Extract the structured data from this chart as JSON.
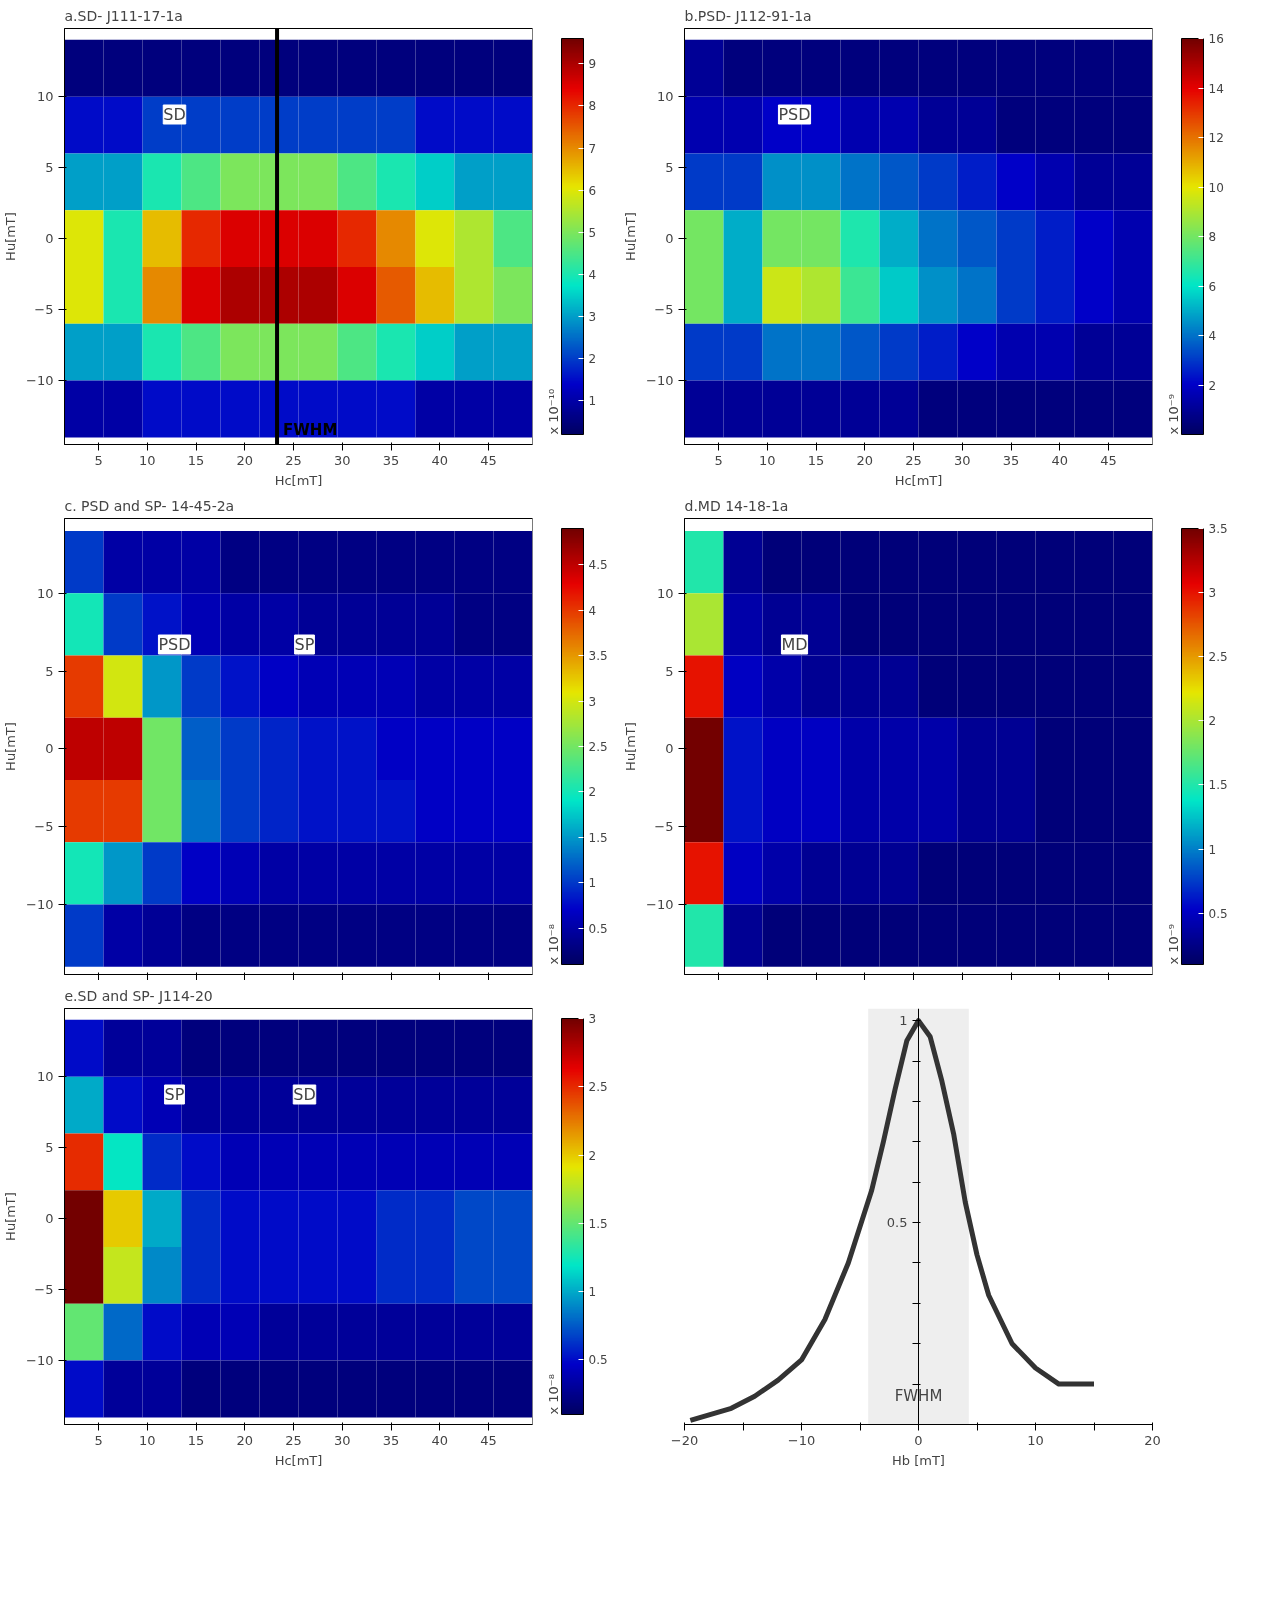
{
  "chart_data": [
    {
      "type": "heatmap",
      "title": "a.SD- J111-17-1a",
      "xlabel": "Hc[mT]",
      "ylabel": "Hu[mT]",
      "clabel": "x 10⁻¹⁰",
      "x": [
        3.5,
        7.5,
        11.5,
        15.5,
        19.5,
        23.5,
        27.5,
        31.5,
        35.5,
        39.5,
        43.5,
        47.5
      ],
      "y": [
        12,
        8,
        4,
        0,
        -4,
        -8,
        -12
      ],
      "cells": [
        [
          0.5,
          0.5,
          0.5,
          0.5,
          0.5,
          0.5,
          0.5,
          0.5,
          0.5,
          0.5,
          0.5,
          0.5
        ],
        [
          1.5,
          1.5,
          2,
          2,
          2,
          2,
          2,
          2,
          2,
          1.5,
          1.5,
          1.5
        ],
        [
          3,
          3,
          4,
          4.5,
          5,
          5,
          5,
          4.5,
          4,
          3.5,
          3,
          3
        ],
        [
          6,
          4,
          6.5,
          8,
          8.5,
          8.5,
          8.5,
          8,
          7,
          6,
          5.5,
          4.5
        ],
        [
          6,
          4,
          7,
          8.5,
          9,
          9,
          9,
          8.5,
          7.5,
          6.5,
          5.5,
          5
        ],
        [
          3,
          3,
          4,
          4.5,
          5,
          5,
          5,
          4.5,
          4,
          3.5,
          3,
          3
        ],
        [
          1,
          1,
          1.5,
          1.5,
          1.5,
          1.5,
          1.5,
          1.5,
          1.5,
          1,
          1,
          1
        ]
      ],
      "clim": [
        0.2,
        9.6
      ],
      "cticks": [
        1,
        2,
        3,
        4,
        5,
        6,
        7,
        8,
        9
      ],
      "xlim": [
        1.5,
        49.5
      ],
      "ylim": [
        -14.5,
        14.8
      ],
      "xticks": [
        5,
        10,
        15,
        20,
        25,
        30,
        35,
        40,
        45
      ],
      "yticks": [
        -10,
        -5,
        0,
        5,
        10
      ],
      "annotations": [
        "SD"
      ],
      "ref_lines": [
        {
          "axis": "x",
          "value": 23.3,
          "label": "FWHM",
          "color": "#000000"
        }
      ]
    },
    {
      "type": "heatmap",
      "title": "b.PSD- J112-91-1a",
      "xlabel": "Hc[mT]",
      "ylabel": "Hu[mT]",
      "clabel": "x 10⁻⁹",
      "x": [
        3.5,
        7.5,
        11.5,
        15.5,
        19.5,
        23.5,
        27.5,
        31.5,
        35.5,
        39.5,
        43.5,
        47.5
      ],
      "y": [
        12,
        8,
        4,
        0,
        -4,
        -8,
        -12
      ],
      "cells": [
        [
          1,
          0.5,
          0.5,
          0.5,
          0.5,
          0.5,
          0.5,
          0.5,
          0.5,
          0.5,
          0.5,
          0.5
        ],
        [
          1.5,
          1.5,
          2,
          2,
          1.5,
          1.5,
          1,
          1,
          0.5,
          0.5,
          0.5,
          0.5
        ],
        [
          3,
          3,
          4.5,
          4.5,
          4,
          3.5,
          3,
          2.5,
          2,
          1.5,
          1,
          1
        ],
        [
          8,
          5,
          8,
          8,
          6.5,
          5,
          4,
          3.5,
          3,
          2.5,
          2,
          1.5
        ],
        [
          8,
          5,
          9.5,
          9,
          7,
          5.5,
          4.5,
          4,
          3,
          2.5,
          2,
          1.5
        ],
        [
          3,
          3,
          4,
          4,
          3.5,
          3,
          2.5,
          2,
          1.5,
          1.5,
          1,
          1
        ],
        [
          1,
          1,
          1,
          1,
          1,
          1,
          0.5,
          0.5,
          0.5,
          0.5,
          0.5,
          0.5
        ]
      ],
      "clim": [
        0,
        16
      ],
      "cticks": [
        2,
        4,
        6,
        8,
        10,
        12,
        14,
        16
      ],
      "xlim": [
        1.5,
        49.5
      ],
      "ylim": [
        -14.5,
        14.8
      ],
      "xticks": [
        5,
        10,
        15,
        20,
        25,
        30,
        35,
        40,
        45
      ],
      "yticks": [
        -10,
        -5,
        0,
        5,
        10
      ],
      "annotations": [
        "PSD"
      ]
    },
    {
      "type": "heatmap",
      "title": "c. PSD and SP- 14-45-2a",
      "ylabel": "Hu[mT]",
      "clabel": "x 10⁻⁸",
      "x": [
        3.5,
        7.5,
        11.5,
        15.5,
        19.5,
        23.5,
        27.5,
        31.5,
        35.5,
        39.5,
        43.5,
        47.5
      ],
      "y": [
        12,
        8,
        4,
        0,
        -4,
        -8,
        -12
      ],
      "cells": [
        [
          1,
          0.5,
          0.5,
          0.5,
          0.3,
          0.3,
          0.3,
          0.3,
          0.3,
          0.3,
          0.3,
          0.3
        ],
        [
          2,
          1,
          0.8,
          0.6,
          0.5,
          0.5,
          0.4,
          0.4,
          0.4,
          0.4,
          0.3,
          0.3
        ],
        [
          4,
          3,
          1.5,
          1,
          0.8,
          0.7,
          0.6,
          0.6,
          0.6,
          0.5,
          0.5,
          0.5
        ],
        [
          4.5,
          4.5,
          2.5,
          1.2,
          1,
          0.9,
          0.8,
          0.8,
          0.7,
          0.7,
          0.7,
          0.7
        ],
        [
          4,
          4,
          2.5,
          1.3,
          1,
          0.9,
          0.8,
          0.8,
          0.8,
          0.7,
          0.7,
          0.7
        ],
        [
          2,
          1.5,
          1,
          0.7,
          0.6,
          0.5,
          0.5,
          0.5,
          0.5,
          0.5,
          0.5,
          0.5
        ],
        [
          1,
          0.5,
          0.4,
          0.3,
          0.3,
          0.3,
          0.3,
          0.3,
          0.3,
          0.3,
          0.3,
          0.3
        ]
      ],
      "clim": [
        0.1,
        4.9
      ],
      "cticks": [
        0.5,
        1,
        1.5,
        2,
        2.5,
        3,
        3.5,
        4,
        4.5
      ],
      "xlim": [
        1.5,
        49.5
      ],
      "ylim": [
        -14.5,
        14.8
      ],
      "xticks": [
        5,
        10,
        15,
        20,
        25,
        30,
        35,
        40,
        45
      ],
      "yticks": [
        -10,
        -5,
        0,
        5,
        10
      ],
      "tick_labels": "y",
      "annotations": [
        "PSD",
        "SP"
      ]
    },
    {
      "type": "heatmap",
      "title": "d.MD 14-18-1a",
      "ylabel": "Hu[mT]",
      "clabel": "x 10⁻⁹",
      "x": [
        3.5,
        7.5,
        11.5,
        15.5,
        19.5,
        23.5,
        27.5,
        31.5,
        35.5,
        39.5,
        43.5,
        47.5
      ],
      "y": [
        12,
        8,
        4,
        0,
        -4,
        -8,
        -12
      ],
      "cells": [
        [
          1.5,
          0.3,
          0.2,
          0.2,
          0.2,
          0.2,
          0.2,
          0.2,
          0.2,
          0.2,
          0.2,
          0.2
        ],
        [
          2,
          0.4,
          0.3,
          0.3,
          0.2,
          0.2,
          0.2,
          0.2,
          0.2,
          0.2,
          0.2,
          0.2
        ],
        [
          3,
          0.5,
          0.4,
          0.3,
          0.3,
          0.3,
          0.2,
          0.2,
          0.2,
          0.2,
          0.2,
          0.2
        ],
        [
          3.5,
          0.6,
          0.5,
          0.5,
          0.4,
          0.4,
          0.4,
          0.3,
          0.3,
          0.2,
          0.2,
          0.2
        ],
        [
          3.5,
          0.6,
          0.5,
          0.5,
          0.4,
          0.4,
          0.4,
          0.3,
          0.3,
          0.2,
          0.2,
          0.2
        ],
        [
          3,
          0.5,
          0.4,
          0.3,
          0.3,
          0.3,
          0.2,
          0.2,
          0.2,
          0.2,
          0.2,
          0.2
        ],
        [
          1.5,
          0.3,
          0.2,
          0.2,
          0.2,
          0.2,
          0.2,
          0.2,
          0.2,
          0.2,
          0.2,
          0.2
        ]
      ],
      "clim": [
        0.1,
        3.5
      ],
      "cticks": [
        0.5,
        1,
        1.5,
        2,
        2.5,
        3,
        3.5
      ],
      "xlim": [
        1.5,
        49.5
      ],
      "ylim": [
        -14.5,
        14.8
      ],
      "xticks": [
        5,
        10,
        15,
        20,
        25,
        30,
        35,
        40,
        45
      ],
      "yticks": [
        -10,
        -5,
        0,
        5,
        10
      ],
      "tick_labels": "y",
      "annotations": [
        "MD"
      ]
    },
    {
      "type": "heatmap",
      "title": "e.SD and SP- J114-20",
      "xlabel": "Hc[mT]",
      "ylabel": "Hu[mT]",
      "clabel": "x 10⁻⁸",
      "x": [
        3.5,
        7.5,
        11.5,
        15.5,
        19.5,
        23.5,
        27.5,
        31.5,
        35.5,
        39.5,
        43.5,
        47.5
      ],
      "y": [
        12,
        8,
        4,
        0,
        -4,
        -8,
        -12
      ],
      "cells": [
        [
          0.5,
          0.3,
          0.3,
          0.2,
          0.2,
          0.2,
          0.2,
          0.2,
          0.2,
          0.2,
          0.2,
          0.2
        ],
        [
          1,
          0.5,
          0.4,
          0.3,
          0.3,
          0.3,
          0.3,
          0.3,
          0.3,
          0.3,
          0.3,
          0.3
        ],
        [
          2.5,
          1.2,
          0.6,
          0.5,
          0.4,
          0.4,
          0.4,
          0.4,
          0.4,
          0.4,
          0.4,
          0.4
        ],
        [
          3,
          2,
          1,
          0.6,
          0.5,
          0.5,
          0.5,
          0.5,
          0.6,
          0.6,
          0.7,
          0.7
        ],
        [
          3,
          1.8,
          0.9,
          0.6,
          0.5,
          0.5,
          0.5,
          0.5,
          0.6,
          0.6,
          0.7,
          0.7
        ],
        [
          1.5,
          0.8,
          0.5,
          0.4,
          0.4,
          0.3,
          0.3,
          0.3,
          0.3,
          0.3,
          0.3,
          0.3
        ],
        [
          0.5,
          0.3,
          0.3,
          0.2,
          0.2,
          0.2,
          0.2,
          0.2,
          0.2,
          0.2,
          0.2,
          0.2
        ]
      ],
      "clim": [
        0.1,
        3.0
      ],
      "cticks": [
        0.5,
        1,
        1.5,
        2,
        2.5,
        3
      ],
      "xlim": [
        1.5,
        49.5
      ],
      "ylim": [
        -14.5,
        14.8
      ],
      "xticks": [
        5,
        10,
        15,
        20,
        25,
        30,
        35,
        40,
        45
      ],
      "yticks": [
        -10,
        -5,
        0,
        5,
        10
      ],
      "annotations": [
        "SP",
        "SD"
      ]
    },
    {
      "type": "line",
      "xlabel": "Hb [mT]",
      "color": "#333333",
      "x": [
        -19.5,
        -16,
        -14,
        -12,
        -10,
        -8,
        -6,
        -4,
        -3,
        -2,
        -1,
        0,
        1,
        2,
        3,
        4,
        5,
        6,
        8,
        10,
        12,
        14,
        15
      ],
      "values": [
        0.01,
        0.04,
        0.07,
        0.11,
        0.16,
        0.26,
        0.4,
        0.58,
        0.7,
        0.83,
        0.95,
        1.0,
        0.96,
        0.85,
        0.72,
        0.55,
        0.42,
        0.32,
        0.2,
        0.14,
        0.1,
        0.1,
        0.1
      ],
      "xlim": [
        -20,
        20
      ],
      "ylim": [
        0,
        1.03
      ],
      "xticks": [
        -20,
        {
          "value": -15,
          "label": null
        },
        -10,
        {
          "value": -5,
          "label": null
        },
        0,
        {
          "value": 5,
          "label": null
        },
        10,
        {
          "value": 15,
          "label": null
        },
        20
      ],
      "yticks": [
        {
          "value": 0.1,
          "label": null
        },
        {
          "value": 0.2,
          "label": null
        },
        {
          "value": 0.3,
          "label": null
        },
        {
          "value": 0.4,
          "label": null
        },
        0.5,
        {
          "value": 0.6,
          "label": null
        },
        {
          "value": 0.7,
          "label": null
        },
        {
          "value": 0.8,
          "label": null
        },
        {
          "value": 0.9,
          "label": null
        },
        1
      ],
      "bands": [
        {
          "axis": "x",
          "from": -4.3,
          "to": 4.3,
          "label": "FWHM",
          "color": "#eeeeee"
        }
      ]
    }
  ]
}
